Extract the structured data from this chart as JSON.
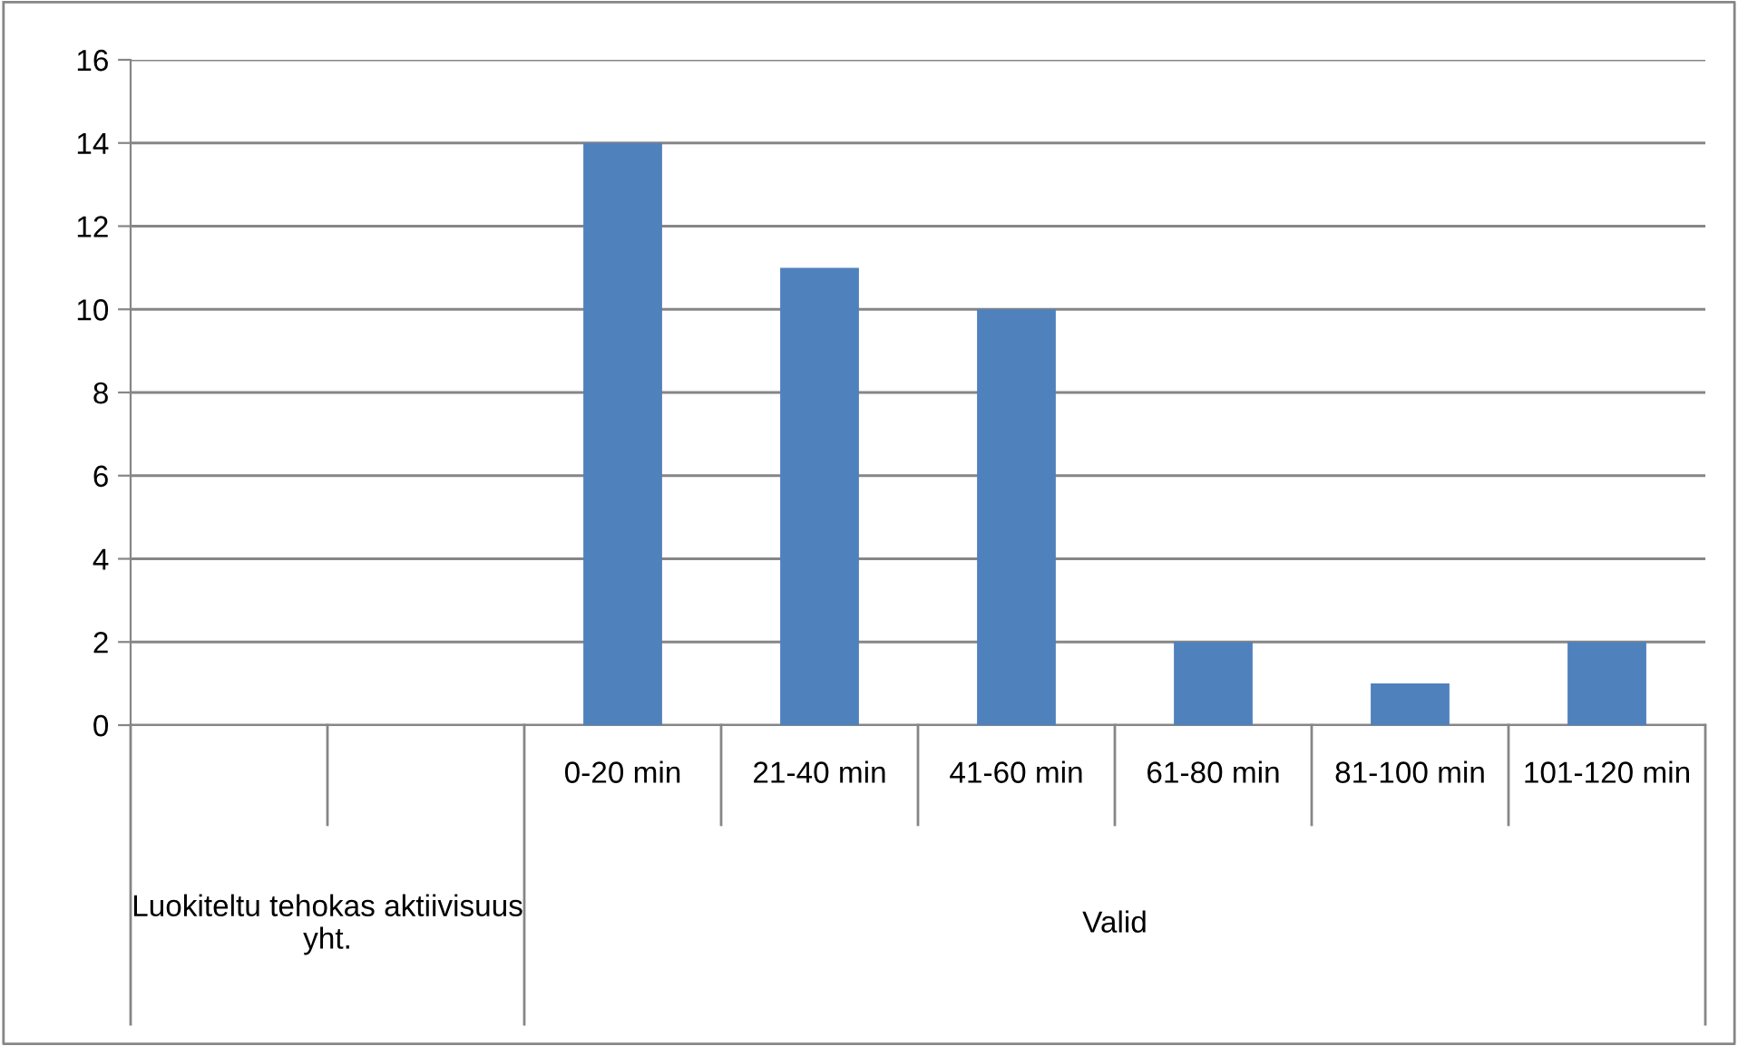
{
  "chart_data": {
    "type": "bar",
    "categories": [
      null,
      null,
      "0-20 min",
      "21-40 min",
      "41-60 min",
      "61-80 min",
      "81-100 min",
      "101-120 min"
    ],
    "values": [
      null,
      null,
      14,
      11,
      10,
      2,
      1,
      2
    ],
    "color": "#4f81bd",
    "ylim": [
      0,
      16
    ],
    "yticks": [
      0,
      2,
      4,
      6,
      8,
      10,
      12,
      14,
      16
    ],
    "grid": "y",
    "legend": false,
    "annotations": [
      "Luokiteltu tehokas aktiivisuus yht.",
      "Valid"
    ]
  }
}
